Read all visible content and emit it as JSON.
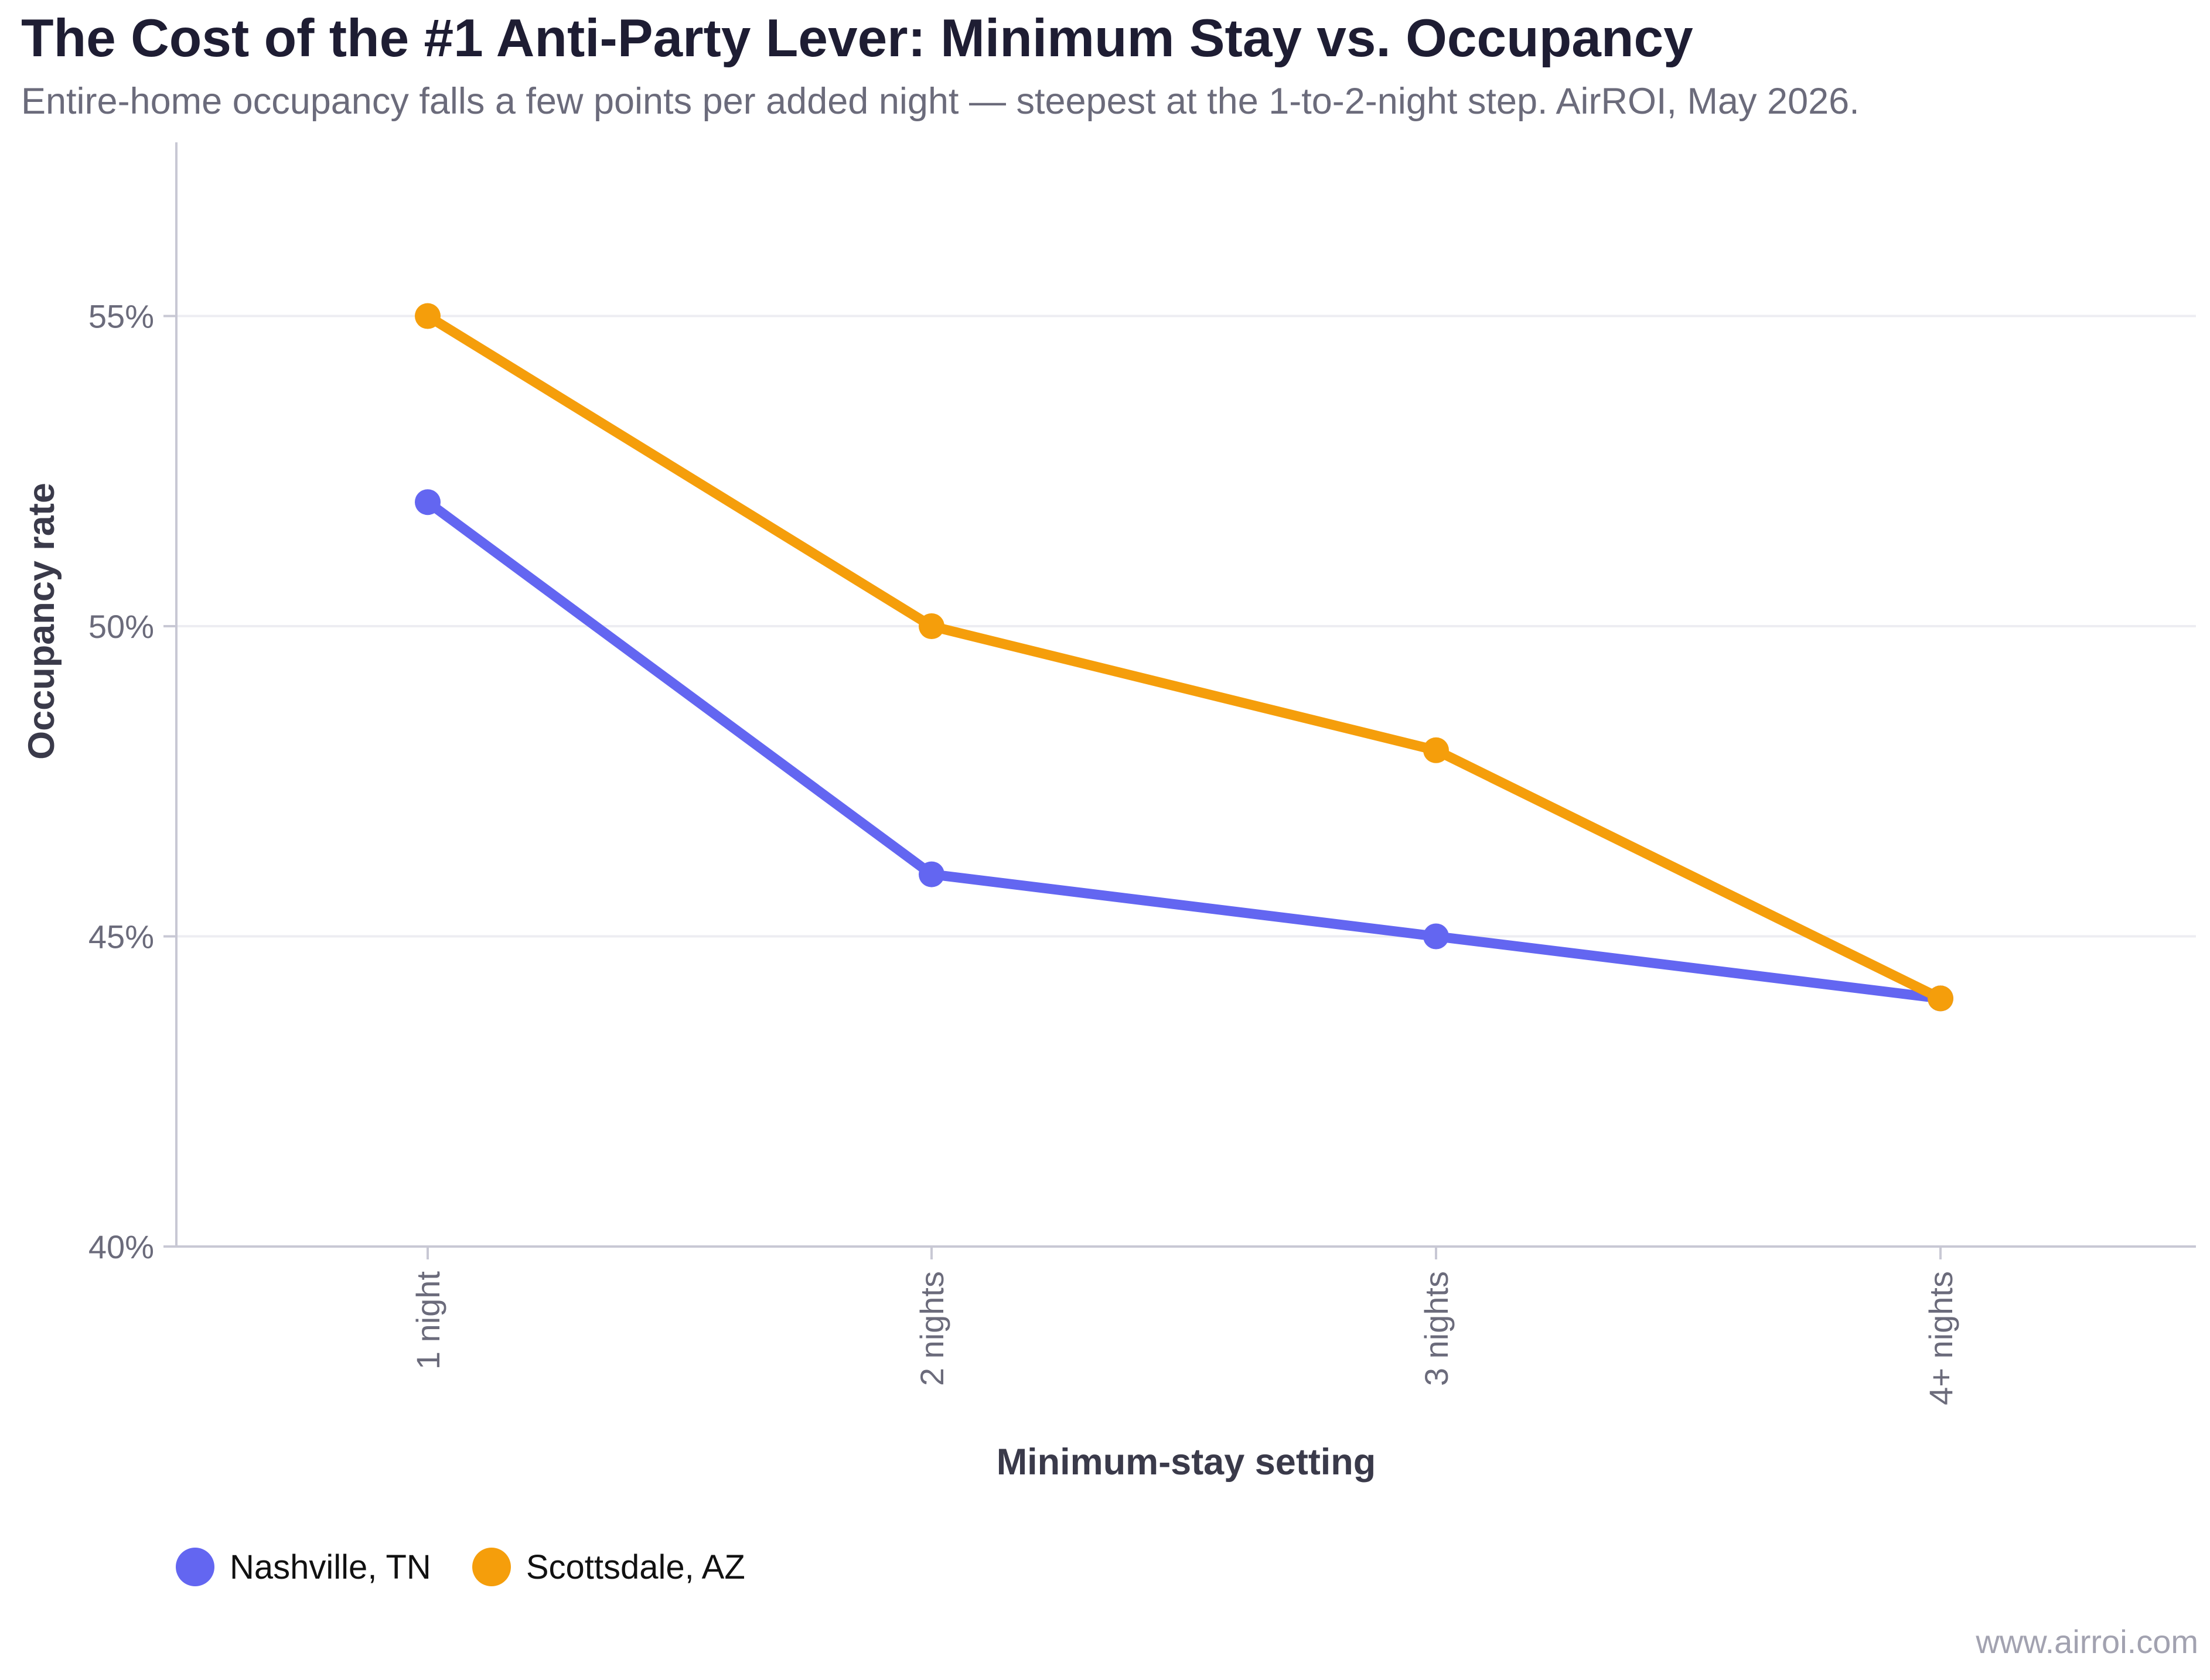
{
  "title": "The Cost of the #1 Anti-Party Lever: Minimum Stay vs. Occupancy",
  "subtitle": "Entire-home occupancy falls a few points per added night — steepest at the 1-to-2-night step. AirROI, May 2026.",
  "watermark": "www.airroi.com",
  "chart_data": {
    "type": "line",
    "title": "The Cost of the #1 Anti-Party Lever: Minimum Stay vs. Occupancy",
    "subtitle": "Entire-home occupancy falls a few points per added night — steepest at the 1-to-2-night step. AirROI, May 2026.",
    "xlabel": "Minimum-stay setting",
    "ylabel": "Occupancy rate",
    "categories": [
      "1 night",
      "2 nights",
      "3 nights",
      "4+ nights"
    ],
    "ylim": [
      40,
      57.8
    ],
    "yticks": [
      40,
      45,
      50,
      55
    ],
    "ytick_labels": [
      "40%",
      "45%",
      "50%",
      "55%"
    ],
    "grid": true,
    "legend": "bottom-left",
    "series": [
      {
        "name": "Nashville, TN",
        "color": "#6366f1",
        "values": [
          52,
          46,
          45,
          44
        ]
      },
      {
        "name": "Scottsdale, AZ",
        "color": "#f59e0b",
        "values": [
          55,
          50,
          48,
          44
        ]
      }
    ]
  }
}
